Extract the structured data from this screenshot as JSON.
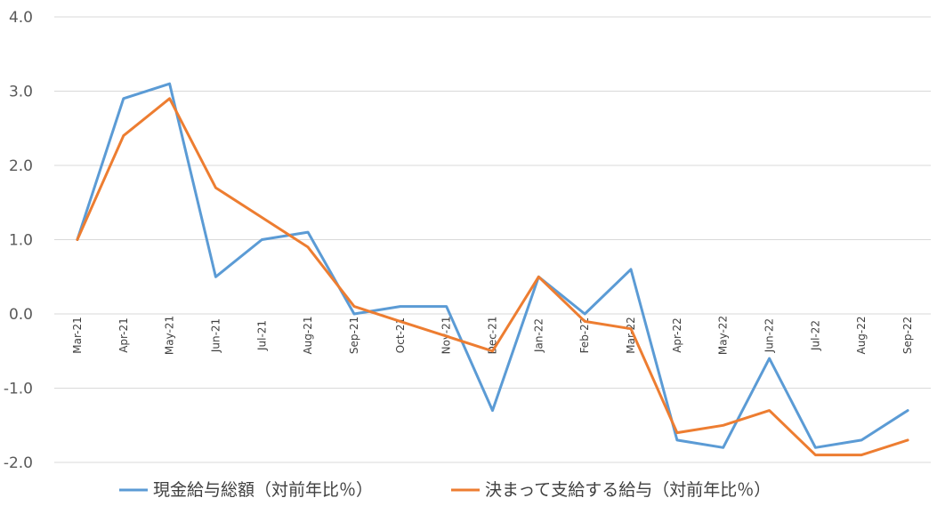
{
  "chart_data": {
    "type": "line",
    "categories": [
      "Mar-21",
      "Apr-21",
      "May-21",
      "Jun-21",
      "Jul-21",
      "Aug-21",
      "Sep-21",
      "Oct-21",
      "Nov-21",
      "Dec-21",
      "Jan-22",
      "Feb-22",
      "Mar-22",
      "Apr-22",
      "May-22",
      "Jun-22",
      "Jul-22",
      "Aug-22",
      "Sep-22"
    ],
    "series": [
      {
        "name": "現金給与総額（対前年比％）",
        "color": "#5b9bd5",
        "values": [
          1.0,
          2.9,
          3.1,
          0.5,
          1.0,
          1.1,
          0.0,
          0.1,
          0.1,
          -1.3,
          0.5,
          0.0,
          0.6,
          -1.7,
          -1.8,
          -0.6,
          -1.8,
          -1.7,
          -1.3
        ]
      },
      {
        "name": "決まって支給する給与（対前年比％）",
        "color": "#ed7d31",
        "values": [
          1.0,
          2.4,
          2.9,
          1.7,
          1.3,
          0.9,
          0.1,
          -0.1,
          -0.3,
          -0.5,
          0.5,
          -0.1,
          -0.2,
          -1.6,
          -1.5,
          -1.3,
          -1.9,
          -1.9,
          -1.7
        ]
      }
    ],
    "yticks": [
      "4.0",
      "3.0",
      "2.0",
      "1.0",
      "0.0",
      "-1.0",
      "-2.0"
    ],
    "ylim": [
      -2.0,
      4.0
    ],
    "grid": true,
    "legend": "bottom"
  }
}
